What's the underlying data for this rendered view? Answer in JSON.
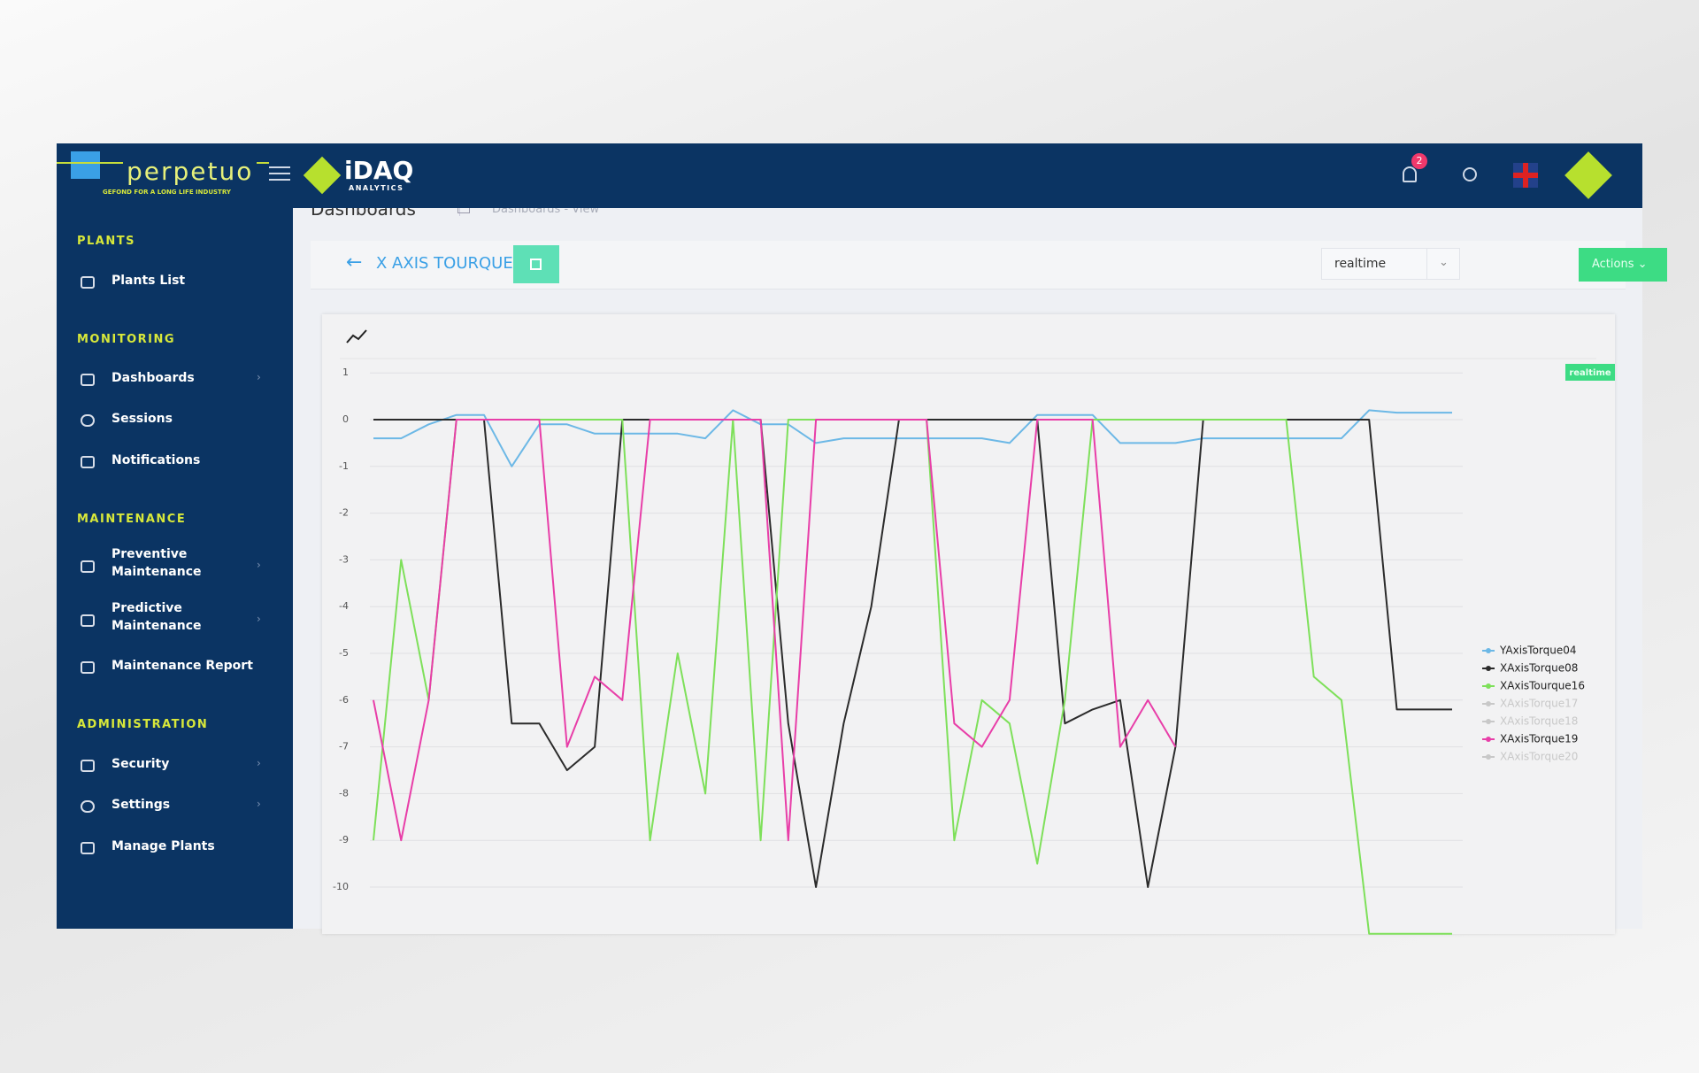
{
  "topbar": {
    "brand": "perpetuo",
    "tagline": "GEFOND FOR A LONG LIFE INDUSTRY",
    "product": "iDAQ",
    "product_sub": "ANALYTICS",
    "notifications": "2"
  },
  "sidebar": {
    "sections": [
      {
        "title": "PLANTS",
        "items": [
          "Plants List"
        ]
      },
      {
        "title": "MONITORING",
        "items": [
          "Dashboards",
          "Sessions",
          "Notifications"
        ]
      },
      {
        "title": "MAINTENANCE",
        "items": [
          "Preventive Maintenance",
          "Predictive Maintenance",
          "Maintenance Report"
        ]
      },
      {
        "title": "ADMINISTRATION",
        "items": [
          "Security",
          "Settings",
          "Manage Plants"
        ]
      }
    ]
  },
  "page": {
    "title": "Dashboards",
    "breadcrumb": [
      "Dashboards",
      "-",
      "View"
    ],
    "dashboard_title": "X AXIS TOURQUE",
    "mode": "realtime",
    "actions": "Actions"
  },
  "chart_data": {
    "type": "line",
    "badge": "realtime",
    "ylim": [
      -11,
      1
    ],
    "yticks": [
      1,
      0,
      -1,
      -2,
      -3,
      -4,
      -5,
      -6,
      -7,
      -8,
      -9,
      -10
    ],
    "grid": true,
    "legend": "right",
    "series": [
      {
        "name": "YAxisTorque04",
        "color": "#6cb8e6",
        "values": [
          -0.4,
          -0.4,
          -0.1,
          0.1,
          0.1,
          -1,
          -0.1,
          -0.1,
          -0.3,
          -0.3,
          -0.3,
          -0.3,
          -0.4,
          0.2,
          -0.1,
          -0.1,
          -0.5,
          -0.4,
          -0.4,
          -0.4,
          -0.4,
          -0.4,
          -0.4,
          -0.5,
          0.1,
          0.1,
          0.1,
          -0.5,
          -0.5,
          -0.5,
          -0.4,
          -0.4,
          -0.4,
          -0.4,
          -0.4,
          -0.4,
          0.2,
          0.15,
          0.15,
          0.15
        ]
      },
      {
        "name": "XAxisTorque08",
        "color": "#2b2b2b",
        "values": [
          0,
          0,
          0,
          0,
          0,
          -6.5,
          -6.5,
          -7.5,
          -7,
          0,
          0,
          0,
          0,
          0,
          0,
          -6.5,
          -10,
          -6.5,
          -4,
          0,
          0,
          0,
          0,
          0,
          0,
          -6.5,
          -6.2,
          -6,
          -10,
          -7,
          0,
          0,
          0,
          0,
          0,
          0,
          0,
          -6.2,
          -6.2,
          -6.2
        ]
      },
      {
        "name": "XAxisTourque16",
        "color": "#7ee05a",
        "values": [
          -9,
          -3,
          -6,
          0,
          0,
          0,
          0,
          0,
          0,
          0,
          -9,
          -5,
          -8,
          0,
          -9,
          0,
          0,
          0,
          0,
          0,
          0,
          -9,
          -6,
          -6.5,
          -9.5,
          -6,
          0,
          0,
          0,
          0,
          0,
          0,
          0,
          0,
          -5.5,
          -6,
          -11,
          -11,
          -11,
          -11
        ]
      },
      {
        "name": "XAxisTorque17",
        "color": "#c8c8c8",
        "visible": false
      },
      {
        "name": "XAxisTorque18",
        "color": "#c8c8c8",
        "visible": false
      },
      {
        "name": "XAxisTorque19",
        "color": "#e83ea8",
        "values": [
          -6,
          -9,
          -6,
          0,
          0,
          0,
          0,
          -7,
          -5.5,
          -6,
          0,
          0,
          0,
          0,
          0,
          -9,
          0,
          0,
          0,
          0,
          0,
          -6.5,
          -7,
          -6,
          0,
          0,
          0,
          -7,
          -6,
          -7,
          null,
          null,
          null,
          null,
          null,
          null,
          null,
          null,
          null,
          null
        ]
      },
      {
        "name": "XAxisTorque20",
        "color": "#c8c8c8",
        "visible": false
      }
    ]
  }
}
